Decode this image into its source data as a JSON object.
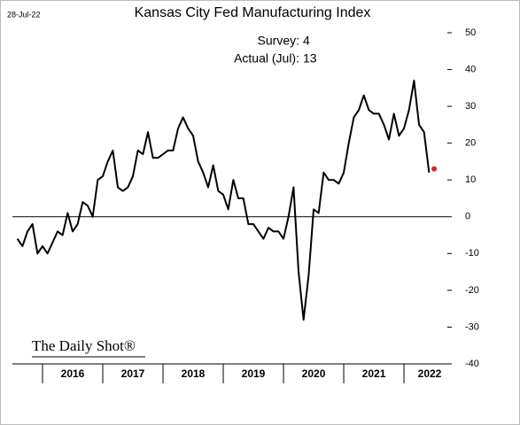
{
  "date": "28-Jul-22",
  "logo": "The Daily Shot®",
  "chart_data": {
    "type": "line",
    "title": "Kansas City Fed Manufacturing Index",
    "annotations": [
      {
        "label": "Survey:",
        "value": 4
      },
      {
        "label": "Actual (Jul):",
        "value": 13
      }
    ],
    "x": [
      2015.583,
      2015.667,
      2015.75,
      2015.833,
      2015.917,
      2016.0,
      2016.083,
      2016.167,
      2016.25,
      2016.333,
      2016.417,
      2016.5,
      2016.583,
      2016.667,
      2016.75,
      2016.833,
      2016.917,
      2017.0,
      2017.083,
      2017.167,
      2017.25,
      2017.333,
      2017.417,
      2017.5,
      2017.583,
      2017.667,
      2017.75,
      2017.833,
      2017.917,
      2018.0,
      2018.083,
      2018.167,
      2018.25,
      2018.333,
      2018.417,
      2018.5,
      2018.583,
      2018.667,
      2018.75,
      2018.833,
      2018.917,
      2019.0,
      2019.083,
      2019.167,
      2019.25,
      2019.333,
      2019.417,
      2019.5,
      2019.583,
      2019.667,
      2019.75,
      2019.833,
      2019.917,
      2020.0,
      2020.083,
      2020.167,
      2020.25,
      2020.333,
      2020.417,
      2020.5,
      2020.583,
      2020.667,
      2020.75,
      2020.833,
      2020.917,
      2021.0,
      2021.083,
      2021.167,
      2021.25,
      2021.333,
      2021.417,
      2021.5,
      2021.583,
      2021.667,
      2021.75,
      2021.833,
      2021.917,
      2022.0,
      2022.083,
      2022.167,
      2022.25,
      2022.333,
      2022.417
    ],
    "series": [
      {
        "color": "#000000",
        "values": [
          -6,
          -8,
          -4,
          -2,
          -10,
          -8,
          -10,
          -7,
          -4,
          -5,
          1,
          -4,
          -2,
          4,
          3,
          0,
          10,
          11,
          15,
          18,
          8,
          7,
          8,
          11,
          18,
          17,
          23,
          16,
          16,
          17,
          18,
          18,
          24,
          27,
          24,
          22,
          15,
          12,
          8,
          14,
          7,
          6,
          2,
          10,
          5,
          5,
          -2,
          -2,
          -4,
          -6,
          -3,
          -4,
          -4,
          -6,
          0,
          8,
          -15,
          -28,
          -16,
          2,
          1,
          12,
          10,
          10,
          9,
          12,
          20,
          27,
          29,
          33,
          29,
          28,
          28,
          25,
          21,
          28,
          22,
          24,
          29,
          37,
          25,
          23,
          12
        ]
      }
    ],
    "highlight": {
      "x": 2022.5,
      "value": 13,
      "color": "#e02020"
    },
    "xlim": [
      2015.5,
      2022.72
    ],
    "xticks": [
      2016,
      2017,
      2018,
      2019,
      2020,
      2021,
      2022
    ],
    "ylim": [
      -40,
      50
    ],
    "yticks": [
      -40,
      -30,
      -20,
      -10,
      0,
      10,
      20,
      30,
      40,
      50
    ]
  }
}
